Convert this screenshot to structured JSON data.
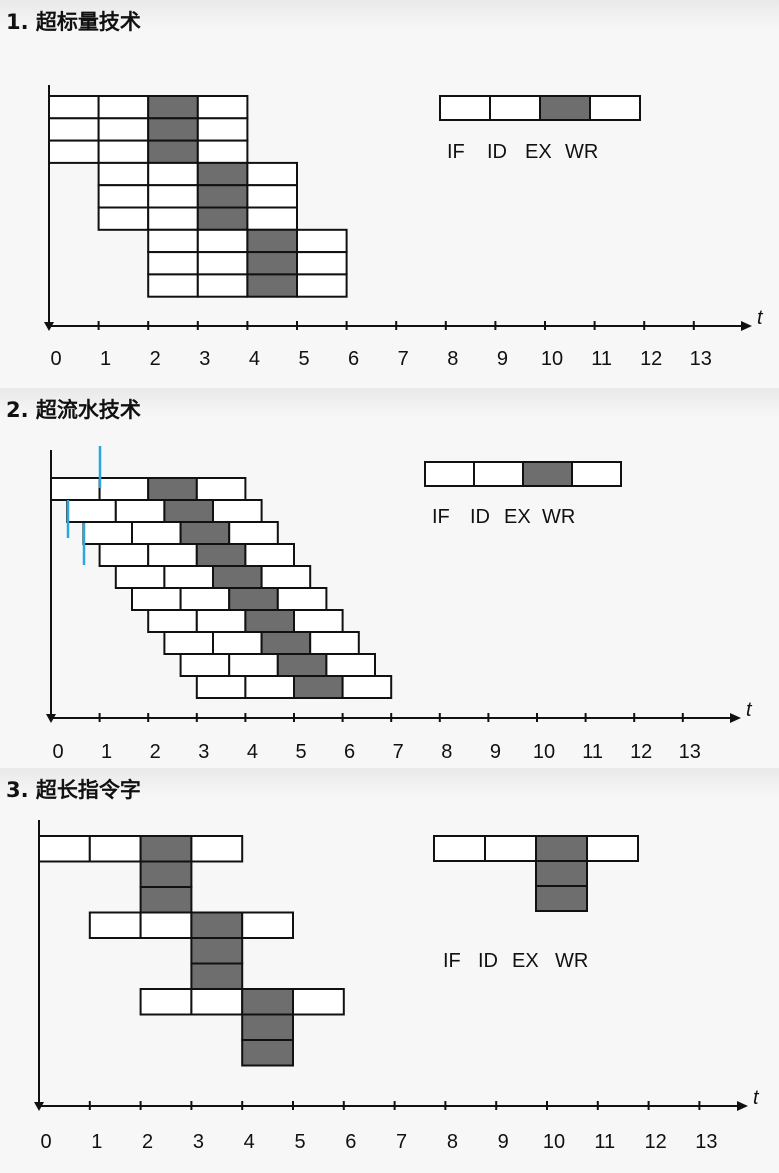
{
  "sections": [
    {
      "title": "1.  超标量技术",
      "t_label": "t",
      "axis_numbers": [
        "0",
        "1",
        "2",
        "3",
        "4",
        "5",
        "6",
        "7",
        "8",
        "9",
        "10",
        "11",
        "12",
        "13"
      ],
      "legend": {
        "stages": [
          "IF",
          "ID",
          "EX",
          "WR"
        ],
        "ex_highlight": "#6e6e6e"
      },
      "pipeline": "superscalar"
    },
    {
      "title": "2.  超流水技术",
      "t_label": "t",
      "axis_numbers": [
        "0",
        "1",
        "2",
        "3",
        "4",
        "5",
        "6",
        "7",
        "8",
        "9",
        "10",
        "11",
        "12",
        "13"
      ],
      "legend": {
        "stages": [
          "IF",
          "ID",
          "EX",
          "WR"
        ],
        "ex_highlight": "#6e6e6e"
      },
      "pipeline": "superpipeline",
      "marker_color": "#2aa7e0"
    },
    {
      "title": "3.  超长指令字",
      "t_label": "t",
      "axis_numbers": [
        "0",
        "1",
        "2",
        "3",
        "4",
        "5",
        "6",
        "7",
        "8",
        "9",
        "10",
        "11",
        "12",
        "13"
      ],
      "legend": {
        "stages": [
          "IF",
          "ID",
          "EX",
          "WR"
        ],
        "ex_highlight": "#6e6e6e",
        "ex_stack": 3
      },
      "pipeline": "vliw"
    }
  ]
}
